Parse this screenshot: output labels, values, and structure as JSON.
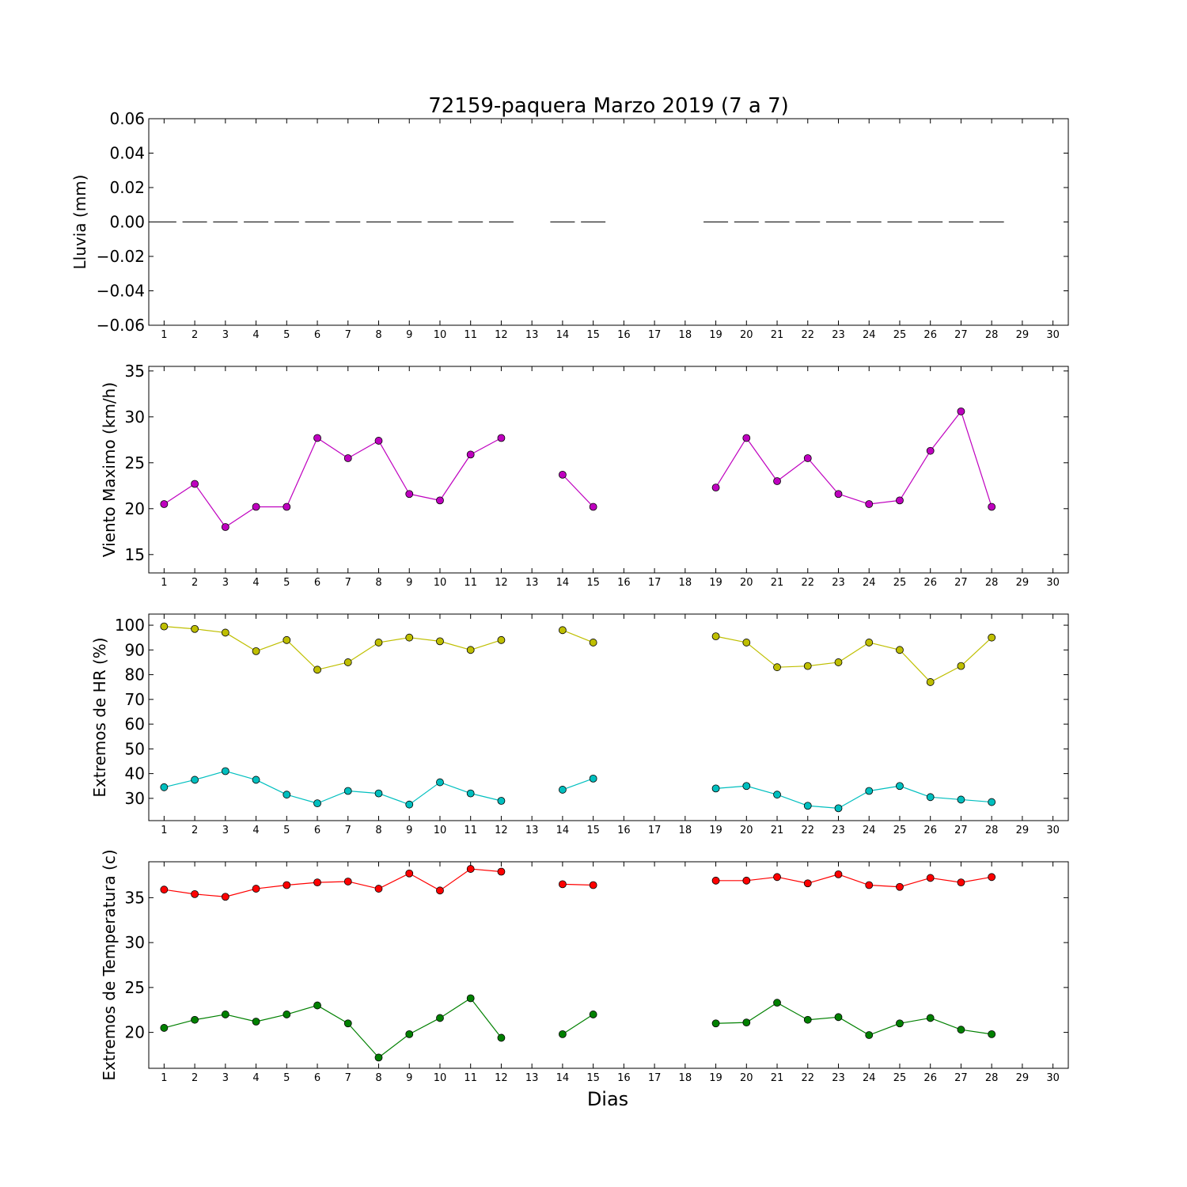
{
  "title": "72159-paquera Marzo 2019  (7 a 7)",
  "xlabel": "Dias",
  "chart_data": [
    {
      "type": "bar",
      "ylabel": "Lluvia (mm)",
      "x": [
        1,
        2,
        3,
        4,
        5,
        6,
        7,
        8,
        9,
        10,
        11,
        12,
        14,
        15,
        19,
        20,
        21,
        22,
        23,
        24,
        25,
        26,
        27,
        28
      ],
      "values": [
        0,
        0,
        0,
        0,
        0,
        0,
        0,
        0,
        0,
        0,
        0,
        0,
        0,
        0,
        0,
        0,
        0,
        0,
        0,
        0,
        0,
        0,
        0,
        0
      ],
      "ylim": [
        -0.06,
        0.06
      ],
      "yticks": [
        0.06,
        0.04,
        0.02,
        0.0,
        -0.02,
        -0.04,
        -0.06
      ],
      "ytick_labels": [
        "0.06",
        "0.04",
        "0.02",
        "0.00",
        "−0.02",
        "−0.04",
        "−0.06"
      ],
      "xlim": [
        0.5,
        30.5
      ],
      "xticks": [
        1,
        2,
        3,
        4,
        5,
        6,
        7,
        8,
        9,
        10,
        11,
        12,
        13,
        14,
        15,
        16,
        17,
        18,
        19,
        20,
        21,
        22,
        23,
        24,
        25,
        26,
        27,
        28,
        29,
        30
      ],
      "grid": false,
      "color": "#000000"
    },
    {
      "type": "line",
      "ylabel": "Viento Maximo (km/h)",
      "x": [
        1,
        2,
        3,
        4,
        5,
        6,
        7,
        8,
        9,
        10,
        11,
        12,
        14,
        15,
        19,
        20,
        21,
        22,
        23,
        24,
        25,
        26,
        27,
        28
      ],
      "series": [
        {
          "color": "#bf00bf",
          "values": [
            20.5,
            22.7,
            18.0,
            20.2,
            20.2,
            27.7,
            25.5,
            27.4,
            21.6,
            20.9,
            25.9,
            27.7,
            23.7,
            20.2,
            22.3,
            27.7,
            23.0,
            25.5,
            21.6,
            20.5,
            20.9,
            26.3,
            30.6,
            20.2
          ]
        }
      ],
      "ylim": [
        13,
        35.5
      ],
      "yticks": [
        15,
        20,
        25,
        30,
        35
      ],
      "ytick_labels": [
        "15",
        "20",
        "25",
        "30",
        "35"
      ],
      "xlim": [
        0.5,
        30.5
      ],
      "xticks": [
        1,
        2,
        3,
        4,
        5,
        6,
        7,
        8,
        9,
        10,
        11,
        12,
        13,
        14,
        15,
        16,
        17,
        18,
        19,
        20,
        21,
        22,
        23,
        24,
        25,
        26,
        27,
        28,
        29,
        30
      ],
      "grid": false
    },
    {
      "type": "line",
      "ylabel": "Extremos de HR (%)",
      "x": [
        1,
        2,
        3,
        4,
        5,
        6,
        7,
        8,
        9,
        10,
        11,
        12,
        14,
        15,
        19,
        20,
        21,
        22,
        23,
        24,
        25,
        26,
        27,
        28
      ],
      "series": [
        {
          "color": "#bfbf00",
          "values": [
            99.5,
            98.5,
            97,
            89.5,
            94,
            82,
            85,
            93,
            95,
            93.5,
            90,
            94,
            98,
            93,
            95.5,
            93,
            83,
            83.5,
            85,
            93,
            90,
            77,
            83.5,
            95
          ]
        },
        {
          "color": "#00bfbf",
          "values": [
            34.5,
            37.5,
            41,
            37.5,
            31.5,
            28,
            33,
            32,
            27.5,
            36.5,
            32,
            29,
            33.5,
            38,
            34,
            35,
            31.5,
            27,
            26,
            33,
            35,
            30.5,
            29.5,
            28.5
          ]
        }
      ],
      "ylim": [
        21,
        104.5
      ],
      "yticks": [
        30,
        40,
        50,
        60,
        70,
        80,
        90,
        100
      ],
      "ytick_labels": [
        "30",
        "40",
        "50",
        "60",
        "70",
        "80",
        "90",
        "100"
      ],
      "xlim": [
        0.5,
        30.5
      ],
      "xticks": [
        1,
        2,
        3,
        4,
        5,
        6,
        7,
        8,
        9,
        10,
        11,
        12,
        13,
        14,
        15,
        16,
        17,
        18,
        19,
        20,
        21,
        22,
        23,
        24,
        25,
        26,
        27,
        28,
        29,
        30
      ],
      "grid": false
    },
    {
      "type": "line",
      "ylabel": "Extremos de Temperatura (c)",
      "x": [
        1,
        2,
        3,
        4,
        5,
        6,
        7,
        8,
        9,
        10,
        11,
        12,
        14,
        15,
        19,
        20,
        21,
        22,
        23,
        24,
        25,
        26,
        27,
        28
      ],
      "series": [
        {
          "color": "#ff0000",
          "values": [
            35.9,
            35.4,
            35.1,
            36.0,
            36.4,
            36.7,
            36.8,
            36.0,
            37.7,
            35.8,
            38.2,
            37.9,
            36.5,
            36.4,
            36.9,
            36.9,
            37.3,
            36.6,
            37.6,
            36.4,
            36.2,
            37.2,
            36.7,
            37.3
          ]
        },
        {
          "color": "#008000",
          "values": [
            20.5,
            21.4,
            22.0,
            21.2,
            22.0,
            23.0,
            21.0,
            17.2,
            19.8,
            21.6,
            23.8,
            19.4,
            19.8,
            22.0,
            21.0,
            21.1,
            23.3,
            21.4,
            21.7,
            19.7,
            21.0,
            21.6,
            20.3,
            19.8
          ]
        }
      ],
      "ylim": [
        16,
        39
      ],
      "yticks": [
        20,
        25,
        30,
        35
      ],
      "ytick_labels": [
        "20",
        "25",
        "30",
        "35"
      ],
      "xlim": [
        0.5,
        30.5
      ],
      "xticks": [
        1,
        2,
        3,
        4,
        5,
        6,
        7,
        8,
        9,
        10,
        11,
        12,
        13,
        14,
        15,
        16,
        17,
        18,
        19,
        20,
        21,
        22,
        23,
        24,
        25,
        26,
        27,
        28,
        29,
        30
      ],
      "grid": false
    }
  ]
}
